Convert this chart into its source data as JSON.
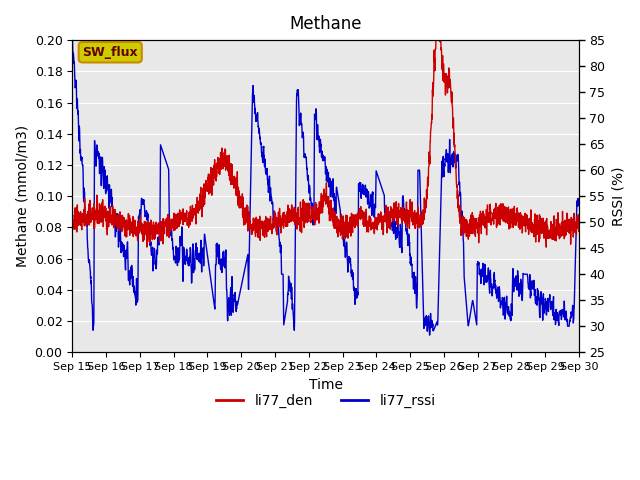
{
  "title": "Methane",
  "ylabel_left": "Methane (mmol/m3)",
  "ylabel_right": "RSSI (%)",
  "xlabel": "Time",
  "ylim_left": [
    0.0,
    0.2
  ],
  "ylim_right": [
    25,
    85
  ],
  "yticks_left": [
    0.0,
    0.02,
    0.04,
    0.06,
    0.08,
    0.1,
    0.12,
    0.14,
    0.16,
    0.18,
    0.2
  ],
  "yticks_right": [
    25,
    30,
    35,
    40,
    45,
    50,
    55,
    60,
    65,
    70,
    75,
    80,
    85
  ],
  "xtick_labels": [
    "Sep 15",
    "Sep 16",
    "Sep 17",
    "Sep 18",
    "Sep 19",
    "Sep 20",
    "Sep 21",
    "Sep 22",
    "Sep 23",
    "Sep 24",
    "Sep 25",
    "Sep 26",
    "Sep 27",
    "Sep 28",
    "Sep 29",
    "Sep 30"
  ],
  "color_red": "#cc0000",
  "color_blue": "#0000cc",
  "bg_color": "#e8e8e8",
  "legend_label_red": "li77_den",
  "legend_label_blue": "li77_rssi",
  "sw_flux_label": "SW_flux",
  "sw_flux_bg": "#cccc00",
  "sw_flux_border": "#cc8800"
}
